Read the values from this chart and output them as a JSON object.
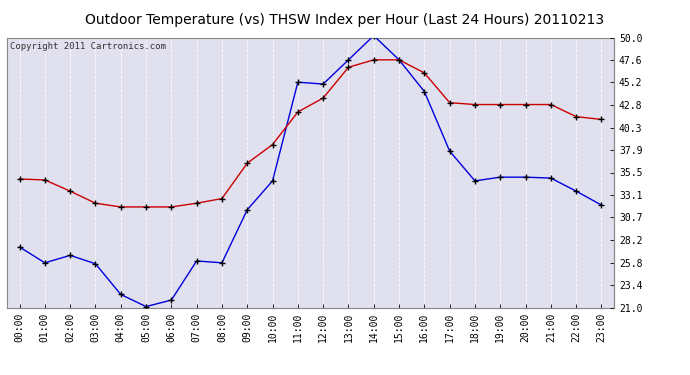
{
  "title": "Outdoor Temperature (vs) THSW Index per Hour (Last 24 Hours) 20110213",
  "copyright_text": "Copyright 2011 Cartronics.com",
  "hours": [
    "00:00",
    "01:00",
    "02:00",
    "03:00",
    "04:00",
    "05:00",
    "06:00",
    "07:00",
    "08:00",
    "09:00",
    "10:00",
    "11:00",
    "12:00",
    "13:00",
    "14:00",
    "15:00",
    "16:00",
    "17:00",
    "18:00",
    "19:00",
    "20:00",
    "21:00",
    "22:00",
    "23:00"
  ],
  "blue_data": [
    27.5,
    25.8,
    26.6,
    25.7,
    22.4,
    21.1,
    21.8,
    26.0,
    25.8,
    31.5,
    34.6,
    45.2,
    45.0,
    47.6,
    50.2,
    47.6,
    44.2,
    37.8,
    34.6,
    35.0,
    35.0,
    34.9,
    33.5,
    32.0
  ],
  "red_data": [
    34.8,
    34.7,
    33.5,
    32.2,
    31.8,
    31.8,
    31.8,
    32.2,
    32.7,
    36.5,
    38.5,
    42.0,
    43.5,
    46.8,
    47.6,
    47.6,
    46.2,
    43.0,
    42.8,
    42.8,
    42.8,
    42.8,
    41.5,
    41.2
  ],
  "ylim": [
    21.0,
    50.0
  ],
  "yticks": [
    21.0,
    23.4,
    25.8,
    28.2,
    30.7,
    33.1,
    35.5,
    37.9,
    40.3,
    42.8,
    45.2,
    47.6,
    50.0
  ],
  "ytick_labels": [
    "21.0",
    "23.4",
    "25.8",
    "28.2",
    "30.7",
    "33.1",
    "35.5",
    "37.9",
    "40.3",
    "42.8",
    "45.2",
    "47.6",
    "50.0"
  ],
  "blue_color": "#0000dd",
  "red_color": "#cc0000",
  "bg_color": "#ffffff",
  "plot_bg_color": "#e0e0ee",
  "grid_color": "#ffffff",
  "title_fontsize": 10,
  "copyright_fontsize": 6.5,
  "tick_fontsize": 7
}
